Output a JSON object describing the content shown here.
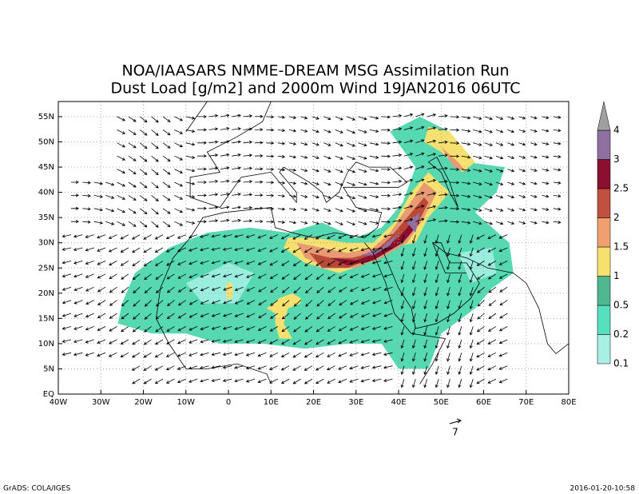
{
  "title": [
    "NOA/IAASARS NMME-DREAM MSG Assimilation Run",
    "Dust Load [g/m2] and 2000m Wind 19JAN2016 06UTC"
  ],
  "map": {
    "lat_labels": [
      "EQ",
      "5N",
      "10N",
      "15N",
      "20N",
      "25N",
      "30N",
      "35N",
      "40N",
      "45N",
      "50N",
      "55N"
    ],
    "lon_labels": [
      "40W",
      "30W",
      "20W",
      "10W",
      "0",
      "10E",
      "20E",
      "30E",
      "40E",
      "50E",
      "60E",
      "70E",
      "80E"
    ]
  },
  "colorbar": {
    "labels": [
      "0.1",
      "0.2",
      "0.5",
      "1",
      "1.5",
      "2",
      "2.5",
      "3",
      "4"
    ]
  },
  "reference_vector": "7",
  "footer": {
    "left": "GrADS: COLA/IGES",
    "right": "2016-01-20-10:58"
  }
}
